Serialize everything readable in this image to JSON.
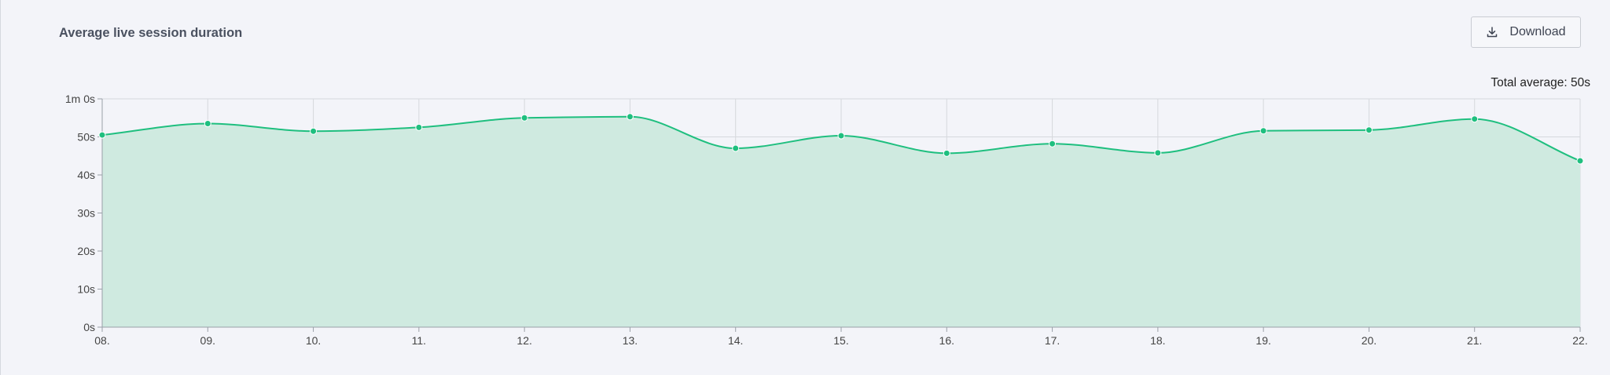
{
  "header": {
    "title": "Average live session duration",
    "download_label": "Download",
    "download_icon": "download-icon"
  },
  "summary": {
    "total_average": "Total average: 50s"
  },
  "colors": {
    "line": "#1fbf7f",
    "area": "#cfeae0",
    "grid": "#d6d8dd"
  },
  "chart_data": {
    "type": "area",
    "title": "Average live session duration",
    "x": [
      "08.",
      "09.",
      "10.",
      "11.",
      "12.",
      "13.",
      "14.",
      "15.",
      "16.",
      "17.",
      "18.",
      "19.",
      "20.",
      "21.",
      "22."
    ],
    "series": [
      {
        "values": [
          50.5,
          53.5,
          51.5,
          52.5,
          55,
          55.3,
          47,
          50.3,
          45.7,
          48.2,
          45.8,
          51.6,
          51.8,
          54.7,
          43.7
        ]
      }
    ],
    "ylim": [
      0,
      60
    ],
    "yticks": [
      0,
      10,
      20,
      30,
      40,
      50,
      60
    ],
    "yticklabels": [
      "0s",
      "10s",
      "20s",
      "30s",
      "40s",
      "50s",
      "1m 0s"
    ],
    "grid": true
  }
}
